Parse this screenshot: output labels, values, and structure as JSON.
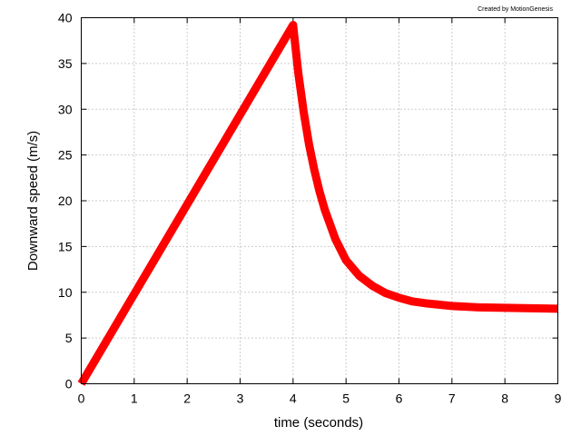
{
  "credit": "Created by MotionGenesis",
  "chart_data": {
    "type": "line",
    "title": "",
    "xlabel": "time  (seconds)",
    "ylabel": "Downward speed  (m/s)",
    "xlim": [
      0,
      9
    ],
    "ylim": [
      0,
      40
    ],
    "xticks": [
      0,
      1,
      2,
      3,
      4,
      5,
      6,
      7,
      8,
      9
    ],
    "yticks": [
      0,
      5,
      10,
      15,
      20,
      25,
      30,
      35,
      40
    ],
    "grid": true,
    "legend": "none",
    "series": [
      {
        "color": "#ff0000",
        "x": [
          0,
          0.5,
          1,
          1.5,
          2,
          2.5,
          3,
          3.5,
          4,
          4.1,
          4.2,
          4.3,
          4.4,
          4.5,
          4.6,
          4.8,
          5,
          5.25,
          5.5,
          5.75,
          6,
          6.25,
          6.5,
          7,
          7.5,
          8,
          8.5,
          9
        ],
        "y": [
          0,
          4.9,
          9.8,
          14.7,
          19.6,
          24.5,
          29.4,
          34.3,
          39.2,
          33.9,
          29.7,
          26.2,
          23.4,
          21.0,
          19.0,
          15.8,
          13.5,
          11.8,
          10.7,
          9.9,
          9.4,
          9.0,
          8.8,
          8.5,
          8.35,
          8.3,
          8.25,
          8.2
        ]
      }
    ]
  }
}
